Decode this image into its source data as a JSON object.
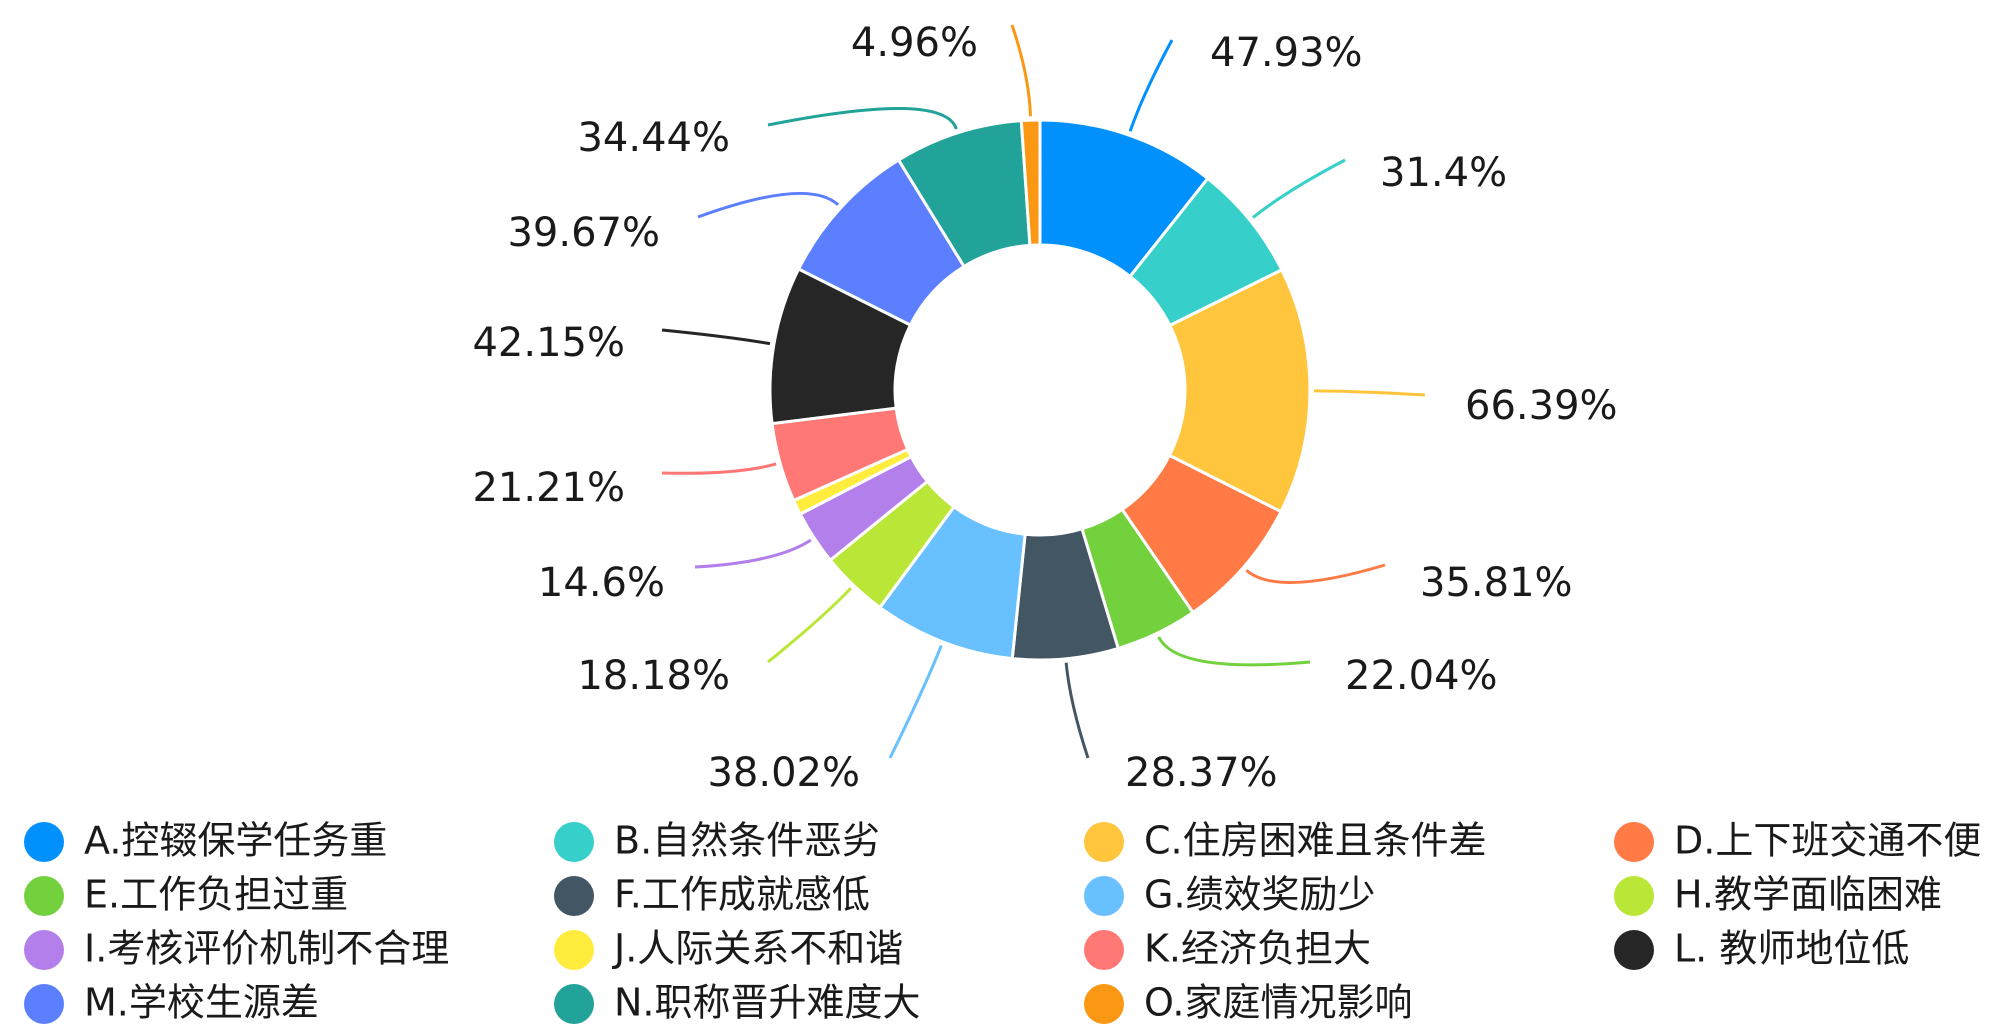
{
  "chart_data": {
    "type": "pie",
    "variant": "donut",
    "legend_position": "bottom",
    "series": [
      {
        "legend": "A.控辍保学任务重",
        "label": "47.93%",
        "value": 47.93,
        "color": "#0091FF"
      },
      {
        "legend": "B.自然条件恶劣",
        "label": "31.4%",
        "value": 31.4,
        "color": "#36CFC9"
      },
      {
        "legend": "C.住房困难且条件差",
        "label": "66.39%",
        "value": 66.39,
        "color": "#FFC53D"
      },
      {
        "legend": "D.上下班交通不便",
        "label": "35.81%",
        "value": 35.81,
        "color": "#FF7A45"
      },
      {
        "legend": "E.工作负担过重",
        "label": "22.04%",
        "value": 22.04,
        "color": "#73D13D"
      },
      {
        "legend": "F.工作成就感低",
        "label": "28.37%",
        "value": 28.37,
        "color": "#425664"
      },
      {
        "legend": "G.绩效奖励少",
        "label": "38.02%",
        "value": 38.02,
        "color": "#69C0FF"
      },
      {
        "legend": "H.教学面临困难",
        "label": "18.18%",
        "value": 18.18,
        "color": "#BAE637"
      },
      {
        "legend": "I.考核评价机制不合理",
        "label": "14.6%",
        "value": 14.6,
        "color": "#B37FEB"
      },
      {
        "legend": "J.人际关系不和谐",
        "label": "",
        "value": 4.0,
        "color": "#FFEC3D"
      },
      {
        "legend": "K.经济负担大",
        "label": "21.21%",
        "value": 21.21,
        "color": "#FF7875"
      },
      {
        "legend": "L. 教师地位低",
        "label": "42.15%",
        "value": 42.15,
        "color": "#262626"
      },
      {
        "legend": "M.学校生源差",
        "label": "39.67%",
        "value": 39.67,
        "color": "#5B7FFF"
      },
      {
        "legend": "N.职称晋升难度大",
        "label": "34.44%",
        "value": 34.44,
        "color": "#22A39A"
      },
      {
        "legend": "O.家庭情况影响",
        "label": "4.96%",
        "value": 4.96,
        "color": "#FA9814"
      }
    ]
  }
}
